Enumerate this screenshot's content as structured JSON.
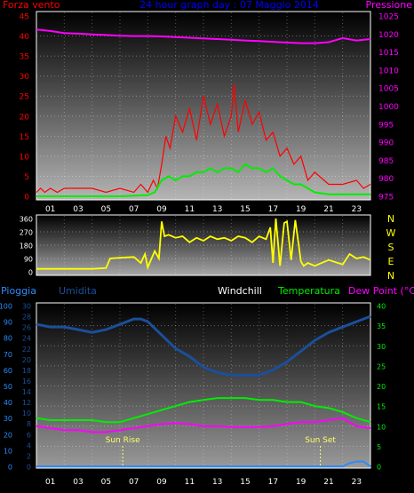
{
  "colors": {
    "background": "#000000",
    "wind": "#ff0000",
    "wind_avg": "#00ee00",
    "pressure": "#ff00ff",
    "title": "#0000ff",
    "direction": "#ffff00",
    "rain": "#2b8cff",
    "humidity": "#1b4f9a",
    "windchill": "#ffffff",
    "temperature": "#00ee00",
    "dewpoint": "#ff00ff",
    "sun_marker": "#ffff66",
    "axis_text": "#ffffff"
  },
  "chart_data": [
    {
      "type": "line",
      "title": "24 hour graph day : 07 Maggio 2014",
      "left_axis_label": "Forza vento",
      "right_axis_label": "Pressione",
      "xticks": [
        "01",
        "03",
        "05",
        "07",
        "09",
        "11",
        "13",
        "15",
        "17",
        "19",
        "21",
        "23"
      ],
      "x_range": [
        0,
        24
      ],
      "left_ticks": [
        "45",
        "40",
        "35",
        "30",
        "25",
        "20",
        "15",
        "10",
        "5",
        "0"
      ],
      "left_range": [
        0,
        45
      ],
      "right_ticks": [
        "1025",
        "1020",
        "1015",
        "1010",
        "1005",
        "1000",
        "995",
        "990",
        "985",
        "980",
        "975"
      ],
      "right_range": [
        973,
        1026
      ],
      "series": [
        {
          "key": "gust",
          "x": [
            0,
            0.3,
            0.6,
            1,
            1.5,
            2,
            3,
            4,
            5,
            6,
            7,
            7.5,
            8,
            8.4,
            8.7,
            9,
            9.3,
            9.6,
            10,
            10.5,
            11,
            11.5,
            12,
            12.5,
            13,
            13.5,
            14,
            14.2,
            14.5,
            15,
            15.5,
            16,
            16.5,
            17,
            17.5,
            18,
            18.5,
            19,
            19.5,
            20,
            21,
            22,
            23,
            23.5,
            24
          ],
          "y": [
            1,
            2,
            1,
            2,
            1,
            2,
            2,
            2,
            1,
            2,
            1,
            3,
            1,
            4,
            2,
            8,
            15,
            12,
            20,
            16,
            22,
            14,
            25,
            18,
            23,
            15,
            20,
            28,
            16,
            24,
            18,
            21,
            14,
            16,
            10,
            12,
            8,
            10,
            4,
            6,
            3,
            3,
            4,
            2,
            3
          ]
        },
        {
          "key": "average",
          "x": [
            0,
            2,
            4,
            6,
            8,
            8.5,
            9,
            9.5,
            10,
            10.5,
            11,
            11.5,
            12,
            12.5,
            13,
            13.5,
            14,
            14.5,
            15,
            15.5,
            16,
            16.5,
            17,
            17.5,
            18,
            18.5,
            19,
            19.5,
            20,
            21,
            22,
            23,
            24
          ],
          "y": [
            0,
            0,
            0,
            0,
            0.3,
            1,
            4,
            5,
            4,
            5,
            5,
            6,
            6,
            7,
            6,
            7,
            7,
            6,
            8,
            7,
            7,
            6,
            7,
            5,
            4,
            3,
            3,
            2,
            1,
            0.5,
            0.5,
            0.5,
            0.5
          ]
        },
        {
          "key": "pressure",
          "x": [
            0,
            1,
            2,
            3,
            4,
            5,
            6,
            7,
            8,
            9,
            10,
            11,
            12,
            13,
            14,
            15,
            16,
            17,
            18,
            19,
            20,
            21,
            22,
            23,
            24
          ],
          "y": [
            1022,
            1021.6,
            1021,
            1020.8,
            1020.6,
            1020.4,
            1020.2,
            1020.1,
            1020.1,
            1020,
            1019.8,
            1019.6,
            1019.4,
            1019.2,
            1019,
            1018.8,
            1018.6,
            1018.4,
            1018.2,
            1018,
            1018,
            1018.3,
            1019.5,
            1018.8,
            1019.2
          ]
        }
      ]
    },
    {
      "type": "line",
      "title": "",
      "left_ticks": [
        "360",
        "270",
        "180",
        "90",
        "0"
      ],
      "left_range": [
        0,
        360
      ],
      "direction_labels": [
        "N",
        "W",
        "S",
        "E",
        "N"
      ],
      "x_range": [
        0,
        24
      ],
      "series": [
        {
          "key": "direction",
          "x": [
            0,
            1,
            2,
            3,
            4,
            5,
            5.3,
            6,
            7,
            7.5,
            7.8,
            8,
            8.5,
            8.8,
            9,
            9.2,
            9.5,
            10,
            10.5,
            11,
            11.5,
            12,
            12.5,
            13,
            13.5,
            14,
            14.5,
            15,
            15.5,
            16,
            16.5,
            16.8,
            17,
            17.2,
            17.5,
            17.8,
            18,
            18.3,
            18.6,
            19,
            19.2,
            19.5,
            20,
            21,
            22,
            22.5,
            23,
            23.5,
            24
          ],
          "y": [
            20,
            20,
            20,
            20,
            20,
            25,
            90,
            95,
            100,
            60,
            120,
            30,
            140,
            90,
            340,
            240,
            250,
            230,
            240,
            200,
            230,
            210,
            240,
            220,
            230,
            210,
            240,
            230,
            200,
            240,
            220,
            300,
            60,
            360,
            40,
            330,
            340,
            80,
            350,
            70,
            40,
            60,
            40,
            80,
            50,
            120,
            90,
            100,
            80
          ]
        }
      ]
    },
    {
      "type": "line",
      "title": "",
      "left_label_1": "Pioggia",
      "left_label_2": "Umidita",
      "mid_label": "Windchill",
      "right_label_1": "Temperatura",
      "right_label_2": "Dew Point (°C)",
      "xticks": [
        "01",
        "03",
        "05",
        "07",
        "09",
        "11",
        "13",
        "15",
        "17",
        "19",
        "21",
        "23"
      ],
      "rain_ticks": [
        "100",
        "90",
        "80",
        "70",
        "60",
        "50",
        "40",
        "30",
        "20",
        "10",
        "0"
      ],
      "rain_range": [
        0,
        100
      ],
      "humidity_ticks": [
        "30",
        "28",
        "26",
        "24",
        "22",
        "20",
        "18",
        "16",
        "14",
        "12",
        "10",
        "8",
        "6",
        "4",
        "2",
        "0"
      ],
      "humidity_range": [
        0,
        30
      ],
      "temp_ticks": [
        "40",
        "35",
        "30",
        "25",
        "20",
        "15",
        "10",
        "5",
        "0"
      ],
      "temp_range": [
        0,
        40
      ],
      "sun_rise_label": "Sun Rise",
      "sun_rise_hour": 6.2,
      "sun_set_label": "Sun Set",
      "sun_set_hour": 20.4,
      "x_range": [
        0,
        24
      ],
      "series": [
        {
          "key": "humidity",
          "x": [
            0,
            1,
            2,
            3,
            4,
            5,
            6,
            6.5,
            7,
            7.5,
            8,
            9,
            10,
            11,
            12,
            13,
            14,
            15,
            16,
            16.5,
            17,
            18,
            19,
            20,
            21,
            22,
            23,
            24
          ],
          "y": [
            26.5,
            26,
            26,
            25.5,
            25,
            25.5,
            26.5,
            27,
            27.5,
            27.5,
            27,
            24.5,
            22,
            20.5,
            18.5,
            17.5,
            17,
            17,
            17,
            17.5,
            18,
            19.5,
            21.5,
            23.5,
            25,
            26,
            27,
            28
          ]
        },
        {
          "key": "temperature",
          "x": [
            0,
            1,
            2,
            3,
            4,
            5,
            6,
            7,
            8,
            9,
            10,
            11,
            12,
            13,
            14,
            15,
            16,
            17,
            18,
            19,
            20,
            21,
            22,
            23,
            24
          ],
          "y": [
            12,
            11.5,
            11.5,
            11.5,
            11.5,
            11,
            11,
            12,
            13,
            14,
            15,
            16,
            16.5,
            17,
            17,
            17,
            16.5,
            16.5,
            16,
            16,
            15,
            14.5,
            13.5,
            12,
            11
          ]
        },
        {
          "key": "dewpoint",
          "x": [
            0,
            1,
            2,
            3,
            4,
            5,
            6,
            7,
            8,
            9,
            10,
            11,
            12,
            13,
            14,
            15,
            16,
            17,
            18,
            19,
            20,
            21,
            22,
            23,
            24
          ],
          "y": [
            10,
            9.5,
            9,
            9,
            8.5,
            8.5,
            9,
            9.5,
            10,
            10.5,
            10.8,
            10.5,
            10,
            10,
            9.8,
            9.8,
            9.8,
            10,
            10.5,
            11,
            11,
            11.5,
            12,
            10,
            9.5
          ]
        },
        {
          "key": "rain",
          "x": [
            0,
            20,
            21,
            22,
            22.5,
            23,
            23.5,
            24
          ],
          "y": [
            0,
            0,
            0,
            0,
            2,
            3,
            3,
            0
          ]
        }
      ]
    }
  ]
}
